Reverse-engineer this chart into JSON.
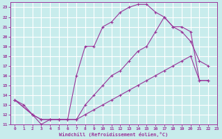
{
  "xlabel": "Windchill (Refroidissement éolien,°C)",
  "bg_color": "#c8ecec",
  "grid_color": "#ffffff",
  "line_color": "#993399",
  "xlim": [
    -0.5,
    23
  ],
  "ylim": [
    11,
    23.5
  ],
  "xticks": [
    0,
    1,
    2,
    3,
    4,
    5,
    6,
    7,
    8,
    9,
    10,
    11,
    12,
    13,
    14,
    15,
    16,
    17,
    18,
    19,
    20,
    21,
    22,
    23
  ],
  "yticks": [
    11,
    12,
    13,
    14,
    15,
    16,
    17,
    18,
    19,
    20,
    21,
    22,
    23
  ],
  "curve1_x": [
    0,
    1,
    2,
    3,
    4,
    5,
    6,
    7,
    8,
    9,
    10,
    11,
    12,
    13,
    14,
    15,
    16,
    17,
    18,
    19,
    20,
    21,
    22
  ],
  "curve1_y": [
    13.5,
    13.0,
    12.0,
    11.0,
    11.5,
    11.5,
    11.5,
    16.0,
    19.0,
    19.0,
    21.0,
    21.5,
    22.5,
    23.0,
    23.3,
    23.3,
    22.5,
    22.0,
    21.0,
    20.5,
    19.5,
    17.5,
    17.0
  ],
  "curve2_x": [
    0,
    2,
    3,
    4,
    5,
    6,
    7,
    8,
    9,
    10,
    11,
    12,
    13,
    14,
    15,
    16,
    17,
    18,
    19,
    20,
    21,
    22
  ],
  "curve2_y": [
    13.5,
    12.0,
    11.5,
    11.5,
    11.5,
    11.5,
    11.5,
    13.0,
    14.0,
    15.0,
    16.0,
    16.5,
    17.5,
    18.5,
    19.0,
    20.5,
    22.0,
    21.0,
    21.0,
    20.5,
    15.5,
    15.5
  ],
  "curve3_x": [
    0,
    2,
    3,
    4,
    5,
    6,
    7,
    8,
    9,
    10,
    11,
    12,
    13,
    14,
    15,
    16,
    17,
    18,
    19,
    20,
    21,
    22
  ],
  "curve3_y": [
    13.5,
    12.0,
    11.5,
    11.5,
    11.5,
    11.5,
    11.5,
    12.0,
    12.5,
    13.0,
    13.5,
    14.0,
    14.5,
    15.0,
    15.5,
    16.0,
    16.5,
    17.0,
    17.5,
    18.0,
    15.5,
    15.5
  ]
}
